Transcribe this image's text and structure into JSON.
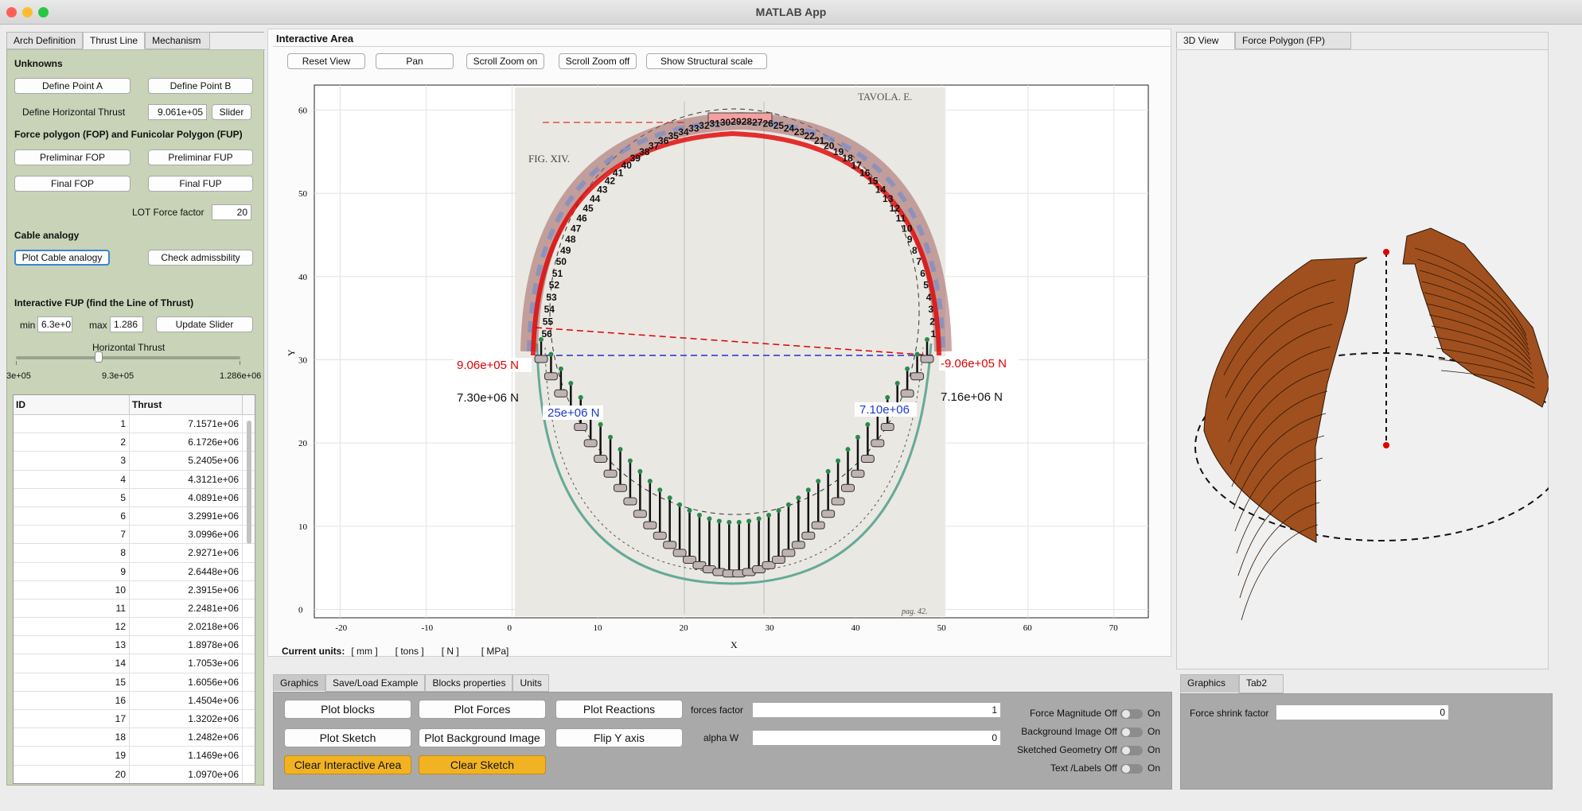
{
  "window": {
    "title": "MATLAB App"
  },
  "left_tabs": [
    "Arch Definition",
    "Thrust Line",
    "Mechanism"
  ],
  "unknowns": {
    "heading": "Unknowns",
    "point_a": "Define Point A",
    "point_b": "Define Point B",
    "horizontal_label": "Define Horizontal Thrust",
    "horizontal_value": "9.061e+05",
    "slider_btn": "Slider"
  },
  "force_polygon": {
    "heading": "Force polygon (FOP) and Funicolar Polygon (FUP)",
    "prelim_fop": "Preliminar FOP",
    "prelim_fup": "Preliminar FUP",
    "final_fop": "Final FOP",
    "final_fup": "Final FUP",
    "lot_label": "LOT Force factor",
    "lot_value": "20"
  },
  "cable": {
    "heading": "Cable analogy",
    "plot": "Plot Cable analogy",
    "check": "Check admissbility"
  },
  "interactive": {
    "heading": "Interactive FUP (find the Line of Thrust)",
    "min_label": "min",
    "min_value": "6.3e+0",
    "max_label": "max",
    "max_value": "1.286",
    "update": "Update Slider",
    "slider_title": "Horizontal Thrust",
    "tick_min": "3e+05",
    "tick_mid": "9.3e+05",
    "tick_max": "1.286e+06",
    "slider_level": 0.37
  },
  "table": {
    "headers": [
      "ID",
      "Thrust"
    ],
    "rows": [
      [
        "1",
        "7.1571e+06"
      ],
      [
        "2",
        "6.1726e+06"
      ],
      [
        "3",
        "5.2405e+06"
      ],
      [
        "4",
        "4.3121e+06"
      ],
      [
        "5",
        "4.0891e+06"
      ],
      [
        "6",
        "3.2991e+06"
      ],
      [
        "7",
        "3.0996e+06"
      ],
      [
        "8",
        "2.9271e+06"
      ],
      [
        "9",
        "2.6448e+06"
      ],
      [
        "10",
        "2.3915e+06"
      ],
      [
        "11",
        "2.2481e+06"
      ],
      [
        "12",
        "2.0218e+06"
      ],
      [
        "13",
        "1.8978e+06"
      ],
      [
        "14",
        "1.7053e+06"
      ],
      [
        "15",
        "1.6056e+06"
      ],
      [
        "16",
        "1.4504e+06"
      ],
      [
        "17",
        "1.3202e+06"
      ],
      [
        "18",
        "1.2482e+06"
      ],
      [
        "19",
        "1.1469e+06"
      ],
      [
        "20",
        "1.0970e+06"
      ]
    ]
  },
  "center": {
    "title": "Interactive Area",
    "buttons": [
      "Reset View",
      "Pan",
      "Scroll Zoom on",
      "Scroll Zoom off",
      "Show Structural scale"
    ],
    "units_label": "Current units:",
    "units": [
      "[ mm ]",
      "[ tons ]",
      "[ N ]",
      "[ MPa]"
    ]
  },
  "plot": {
    "xlabel": "X",
    "ylabel": "Y",
    "xticks": [
      "-20",
      "-10",
      "0",
      "10",
      "20",
      "30",
      "40",
      "50",
      "60",
      "70"
    ],
    "yticks": [
      "0",
      "10",
      "20",
      "30",
      "40",
      "50",
      "60"
    ],
    "bg_texts": {
      "tavola": "TAVOLA. E.",
      "fig": "FIG. XIV.",
      "pag": "pag. 42."
    },
    "annotations": {
      "left_h": "9.06e+05 N",
      "right_h": "-9.06e+05 N",
      "left_v": "7.30e+06 N",
      "right_v": "7.16e+06 N",
      "left_blue": "25e+06 N",
      "right_blue": "7.10e+06"
    },
    "block_numbers": [
      "1",
      "2",
      "3",
      "4",
      "5",
      "6",
      "7",
      "8",
      "9",
      "10",
      "11",
      "12",
      "13",
      "14",
      "15",
      "16",
      "17",
      "18",
      "19",
      "20",
      "21",
      "22",
      "23",
      "24",
      "25",
      "26",
      "27",
      "28",
      "29",
      "30",
      "31",
      "32",
      "33",
      "34",
      "35",
      "36",
      "37",
      "38",
      "39",
      "40",
      "41",
      "42",
      "43",
      "44",
      "45",
      "46",
      "47",
      "48",
      "49",
      "50",
      "51",
      "52",
      "53",
      "54",
      "55",
      "56"
    ]
  },
  "colors": {
    "panel_green": "#c8d3b8",
    "orange": "#f2b322",
    "arch_brown": "#a0501e",
    "thrust_red": "#e00000",
    "dash_blue": "#2030d0"
  },
  "right_tabs": [
    "3D View",
    "Force Polygon (FP)"
  ],
  "bottom_tabs": [
    "Graphics",
    "Save/Load Example",
    "Blocks properties",
    "Units"
  ],
  "graphics": {
    "plot_blocks": "Plot blocks",
    "plot_forces": "Plot Forces",
    "plot_reactions": "Plot Reactions",
    "plot_sketch": "Plot Sketch",
    "plot_bg": "Plot Background Image",
    "flip_y": "Flip Y axis",
    "clear_area": "Clear Interactive Area",
    "clear_sketch": "Clear Sketch",
    "forces_factor_label": "forces factor",
    "forces_factor_value": "1",
    "alpha_label": "alpha W",
    "alpha_value": "0",
    "toggles": [
      {
        "label": "Force Magnitude",
        "off": "Off",
        "on": "On"
      },
      {
        "label": "Background Image",
        "off": "Off",
        "on": "On"
      },
      {
        "label": "Sketched Geometry",
        "off": "Off",
        "on": "On"
      },
      {
        "label": "Text /Labels",
        "off": "Off",
        "on": "On"
      }
    ]
  },
  "right_bottom_tabs": [
    "Graphics",
    "Tab2"
  ],
  "shrink": {
    "label": "Force shrink factor",
    "value": "0"
  }
}
